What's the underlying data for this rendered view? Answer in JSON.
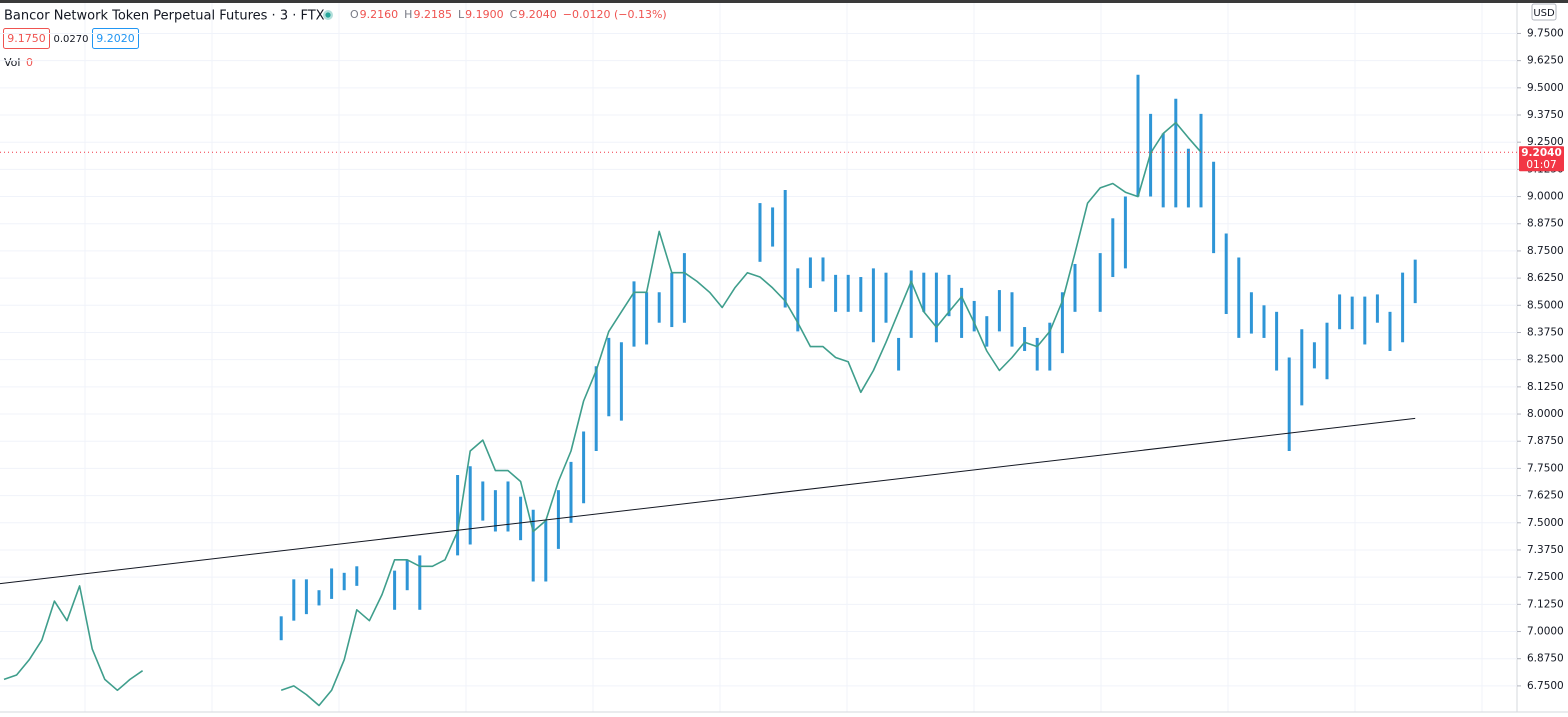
{
  "header": {
    "title": "Bancor Network Token Perpetual Futures · 3 · FTX",
    "ohlc": [
      {
        "label": "O",
        "value": "9.2160"
      },
      {
        "label": "H",
        "value": "9.2185"
      },
      {
        "label": "L",
        "value": "9.1900"
      },
      {
        "label": "C",
        "value": "9.2040"
      },
      {
        "label": "",
        "value": "−0.0120 (−0.13%)"
      }
    ],
    "bid": "9.1750",
    "spread": "0.0270",
    "ask": "9.2020",
    "volume": {
      "label": "Vol",
      "value": "0"
    },
    "currency": "USD"
  },
  "chart_data": {
    "type": "line",
    "color": "#3f9e8c",
    "values": [
      6.78,
      6.8,
      6.87,
      6.96,
      7.14,
      7.05,
      7.21,
      6.92,
      6.78,
      6.73,
      6.78,
      6.82,
      null,
      null,
      null,
      null,
      null,
      null,
      null,
      null,
      null,
      null,
      6.73,
      6.75,
      6.71,
      6.66,
      6.73,
      6.87,
      7.1,
      7.05,
      7.17,
      7.33,
      7.33,
      7.3,
      7.3,
      7.33,
      7.46,
      7.83,
      7.88,
      7.74,
      7.74,
      7.69,
      7.46,
      7.51,
      7.69,
      7.83,
      8.06,
      8.2,
      8.38,
      8.47,
      8.56,
      8.56,
      8.84,
      8.65,
      8.65,
      8.61,
      8.56,
      8.49,
      8.58,
      8.65,
      8.63,
      8.58,
      8.52,
      8.42,
      8.31,
      8.31,
      8.26,
      8.24,
      8.1,
      8.2,
      8.33,
      8.47,
      8.61,
      8.47,
      8.4,
      8.47,
      8.54,
      8.42,
      8.29,
      8.2,
      8.26,
      8.33,
      8.31,
      8.38,
      8.52,
      8.74,
      8.97,
      9.04,
      9.06,
      9.02,
      9.0,
      9.2,
      9.29,
      9.34,
      9.27,
      9.204,
      null,
      null,
      null,
      null,
      null,
      null,
      null,
      null,
      null,
      null,
      null,
      null,
      null,
      null,
      null,
      null,
      null
    ],
    "ranges": {
      "color": "#2e95d6",
      "highs": [
        null,
        null,
        null,
        null,
        null,
        null,
        null,
        null,
        null,
        null,
        null,
        null,
        null,
        null,
        null,
        null,
        null,
        null,
        null,
        null,
        null,
        null,
        7.07,
        7.24,
        7.24,
        7.19,
        7.29,
        7.27,
        7.3,
        null,
        null,
        7.28,
        7.33,
        7.35,
        null,
        null,
        7.72,
        7.76,
        7.69,
        7.65,
        7.69,
        7.62,
        7.56,
        7.51,
        7.65,
        7.78,
        7.92,
        8.22,
        8.35,
        8.33,
        8.61,
        8.56,
        8.56,
        8.65,
        8.74,
        null,
        null,
        null,
        null,
        null,
        8.97,
        8.95,
        9.03,
        8.67,
        8.72,
        8.72,
        8.64,
        8.64,
        8.63,
        8.67,
        8.65,
        8.35,
        8.66,
        8.65,
        8.65,
        8.64,
        8.58,
        8.52,
        8.45,
        8.57,
        8.56,
        8.4,
        8.35,
        8.42,
        8.56,
        8.69,
        null,
        8.74,
        8.9,
        9.0,
        9.56,
        9.38,
        9.29,
        9.45,
        9.22,
        9.38,
        9.16,
        8.83,
        8.72,
        8.56,
        8.5,
        8.47,
        8.26,
        8.39,
        8.33,
        8.42,
        8.55,
        8.54,
        8.54,
        8.55,
        8.47,
        8.65,
        8.71
      ],
      "lows": [
        null,
        null,
        null,
        null,
        null,
        null,
        null,
        null,
        null,
        null,
        null,
        null,
        null,
        null,
        null,
        null,
        null,
        null,
        null,
        null,
        null,
        null,
        6.96,
        7.05,
        7.08,
        7.12,
        7.15,
        7.19,
        7.21,
        null,
        null,
        7.1,
        7.19,
        7.1,
        null,
        null,
        7.35,
        7.4,
        7.51,
        7.46,
        7.46,
        7.42,
        7.23,
        7.23,
        7.38,
        7.5,
        7.59,
        7.83,
        7.99,
        7.97,
        8.31,
        8.32,
        8.42,
        8.4,
        8.42,
        null,
        null,
        null,
        null,
        null,
        8.7,
        8.77,
        8.49,
        8.38,
        8.58,
        8.61,
        8.47,
        8.47,
        8.47,
        8.33,
        8.42,
        8.2,
        8.35,
        8.47,
        8.33,
        8.45,
        8.35,
        8.38,
        8.31,
        8.38,
        8.31,
        8.29,
        8.2,
        8.2,
        8.28,
        8.47,
        null,
        8.47,
        8.63,
        8.67,
        9.0,
        9.0,
        8.95,
        8.95,
        8.95,
        8.95,
        8.74,
        8.46,
        8.35,
        8.37,
        8.35,
        8.2,
        7.83,
        8.04,
        8.21,
        8.16,
        8.39,
        8.39,
        8.32,
        8.42,
        8.29,
        8.33,
        8.51
      ]
    },
    "trendline": {
      "values": [
        7.22,
        7.98
      ],
      "color": "#131722"
    },
    "last_price": {
      "value": 9.204,
      "label": "9.2040",
      "countdown": "01:07",
      "color": "#f23645"
    },
    "grid": true,
    "ylim": [
      6.63,
      9.89
    ],
    "yticks": [
      {
        "value": 6.75,
        "label": "6.7500"
      },
      {
        "value": 6.875,
        "label": "6.8750"
      },
      {
        "value": 7,
        "label": "7.0000"
      },
      {
        "value": 7.125,
        "label": "7.1250"
      },
      {
        "value": 7.25,
        "label": "7.2500"
      },
      {
        "value": 7.375,
        "label": "7.3750"
      },
      {
        "value": 7.5,
        "label": "7.5000"
      },
      {
        "value": 7.625,
        "label": "7.6250"
      },
      {
        "value": 7.75,
        "label": "7.7500"
      },
      {
        "value": 7.875,
        "label": "7.8750"
      },
      {
        "value": 8,
        "label": "8.0000"
      },
      {
        "value": 8.125,
        "label": "8.1250"
      },
      {
        "value": 8.25,
        "label": "8.2500"
      },
      {
        "value": 8.375,
        "label": "8.3750"
      },
      {
        "value": 8.5,
        "label": "8.5000"
      },
      {
        "value": 8.625,
        "label": "8.6250"
      },
      {
        "value": 8.75,
        "label": "8.7500"
      },
      {
        "value": 8.875,
        "label": "8.8750"
      },
      {
        "value": 9,
        "label": "9.0000"
      },
      {
        "value": 9.125,
        "label": "9.1250"
      },
      {
        "value": 9.25,
        "label": "9.2500"
      },
      {
        "value": 9.375,
        "label": "9.3750"
      },
      {
        "value": 9.5,
        "label": "9.5000"
      },
      {
        "value": 9.625,
        "label": "9.6250"
      },
      {
        "value": 9.75,
        "label": "9.7500"
      }
    ]
  }
}
